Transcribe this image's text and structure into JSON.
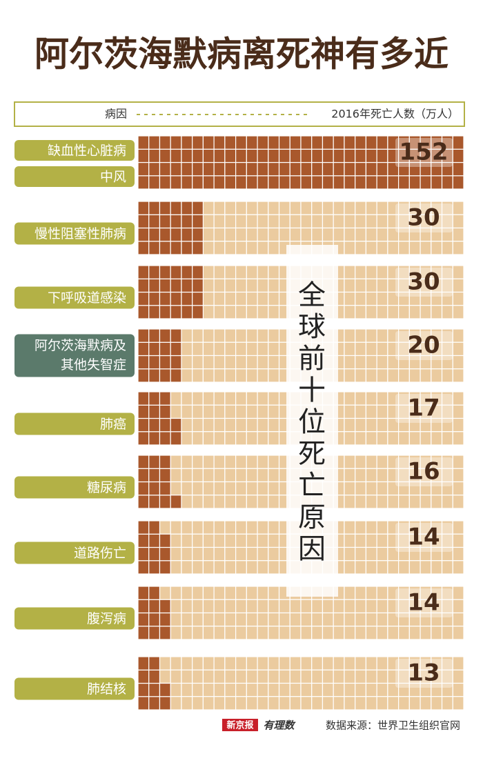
{
  "chart_data": {
    "type": "waffle",
    "title": "阿尔茨海默病离死神有多近",
    "header": {
      "left": "病因",
      "right": "2016年死亡人数（万人）"
    },
    "groups": [
      {
        "labels": [
          "缺血性心脏病",
          "中风"
        ],
        "value": 152,
        "color": "#b3b146"
      },
      {
        "labels": [
          "慢性阻塞性肺病"
        ],
        "value": 30,
        "color": "#b3b146"
      },
      {
        "labels": [
          "下呼吸道感染"
        ],
        "value": 30,
        "color": "#b3b146"
      },
      {
        "labels": [
          "阿尔茨海默病及",
          "其他失智症"
        ],
        "value": 20,
        "color": "#5b7a6b"
      },
      {
        "labels": [
          "肺癌"
        ],
        "value": 17,
        "color": "#b3b146"
      },
      {
        "labels": [
          "糖尿病"
        ],
        "value": 16,
        "color": "#b3b146"
      },
      {
        "labels": [
          "道路伤亡"
        ],
        "value": 14,
        "color": "#b3b146"
      },
      {
        "labels": [
          "腹泻病"
        ],
        "value": 14,
        "color": "#b3b146"
      },
      {
        "labels": [
          "肺结核"
        ],
        "value": 13,
        "color": "#b3b146"
      }
    ],
    "filled_color": "#a9582c",
    "empty_color": "#ebcb9f",
    "annotation": "全球前十位死亡原因",
    "brand": "新京报",
    "column": "有理数",
    "source": "数据来源：世界卫生组织官网"
  }
}
